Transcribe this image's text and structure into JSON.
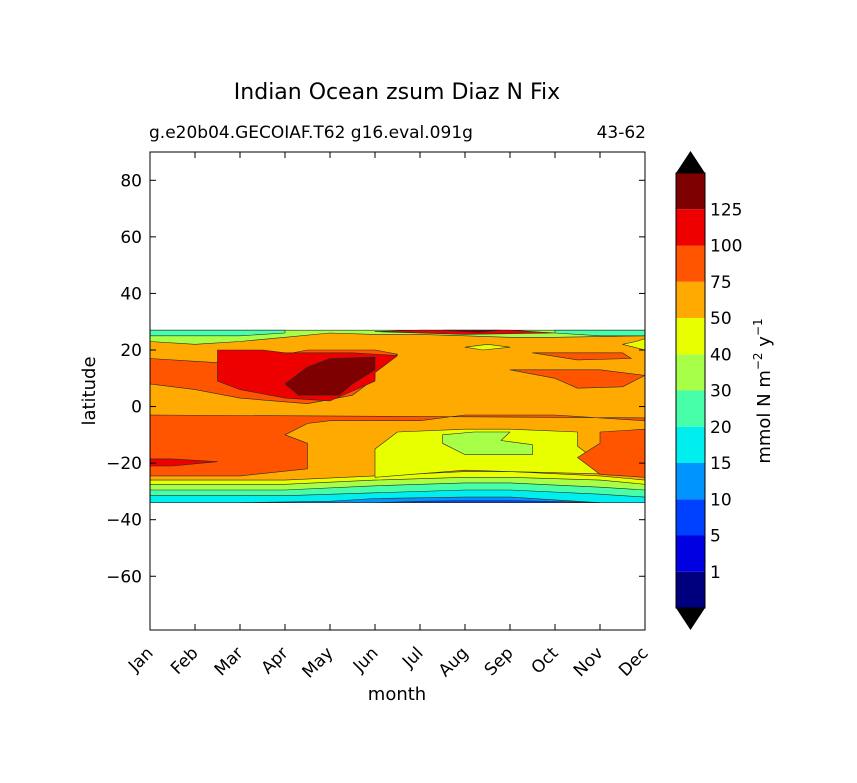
{
  "figure": {
    "title": "Indian Ocean zsum Diaz N Fix",
    "subtitle_left": "g.e20b04.GECOIAF.T62 g16.eval.091g",
    "subtitle_right": "43-62"
  },
  "chart_data": {
    "type": "heatmap",
    "title": "Indian Ocean zsum Diaz N Fix",
    "xlabel": "month",
    "ylabel": "latitude",
    "x_categories": [
      "Jan",
      "Feb",
      "Mar",
      "Apr",
      "May",
      "Jun",
      "Jul",
      "Aug",
      "Sep",
      "Oct",
      "Nov",
      "Dec"
    ],
    "x_range": [
      1,
      12
    ],
    "ylim": [
      -79,
      90
    ],
    "y_ticks": [
      80,
      60,
      40,
      20,
      0,
      -20,
      -40,
      -60
    ],
    "data_extent_lat": [
      -34,
      27
    ],
    "colorbar": {
      "label_parts": {
        "prefix": "mmol N m",
        "exp1": "−2",
        "mid": " y",
        "exp2": "−1"
      },
      "levels": [
        1,
        5,
        10,
        15,
        20,
        30,
        40,
        50,
        75,
        100,
        125
      ],
      "tick_labels": [
        "1",
        "5",
        "10",
        "15",
        "20",
        "30",
        "40",
        "50",
        "75",
        "100",
        "125"
      ],
      "colors": [
        "#00007f",
        "#0000e0",
        "#0040ff",
        "#0094ff",
        "#00eeee",
        "#47ffa8",
        "#a8ff47",
        "#e8ff00",
        "#ffaa00",
        "#ff5500",
        "#ee0000",
        "#7f0000"
      ],
      "extend": "both",
      "over_color": "#000000",
      "under_color": "#000000"
    },
    "background_fill_color": "#ffaa00"
  }
}
